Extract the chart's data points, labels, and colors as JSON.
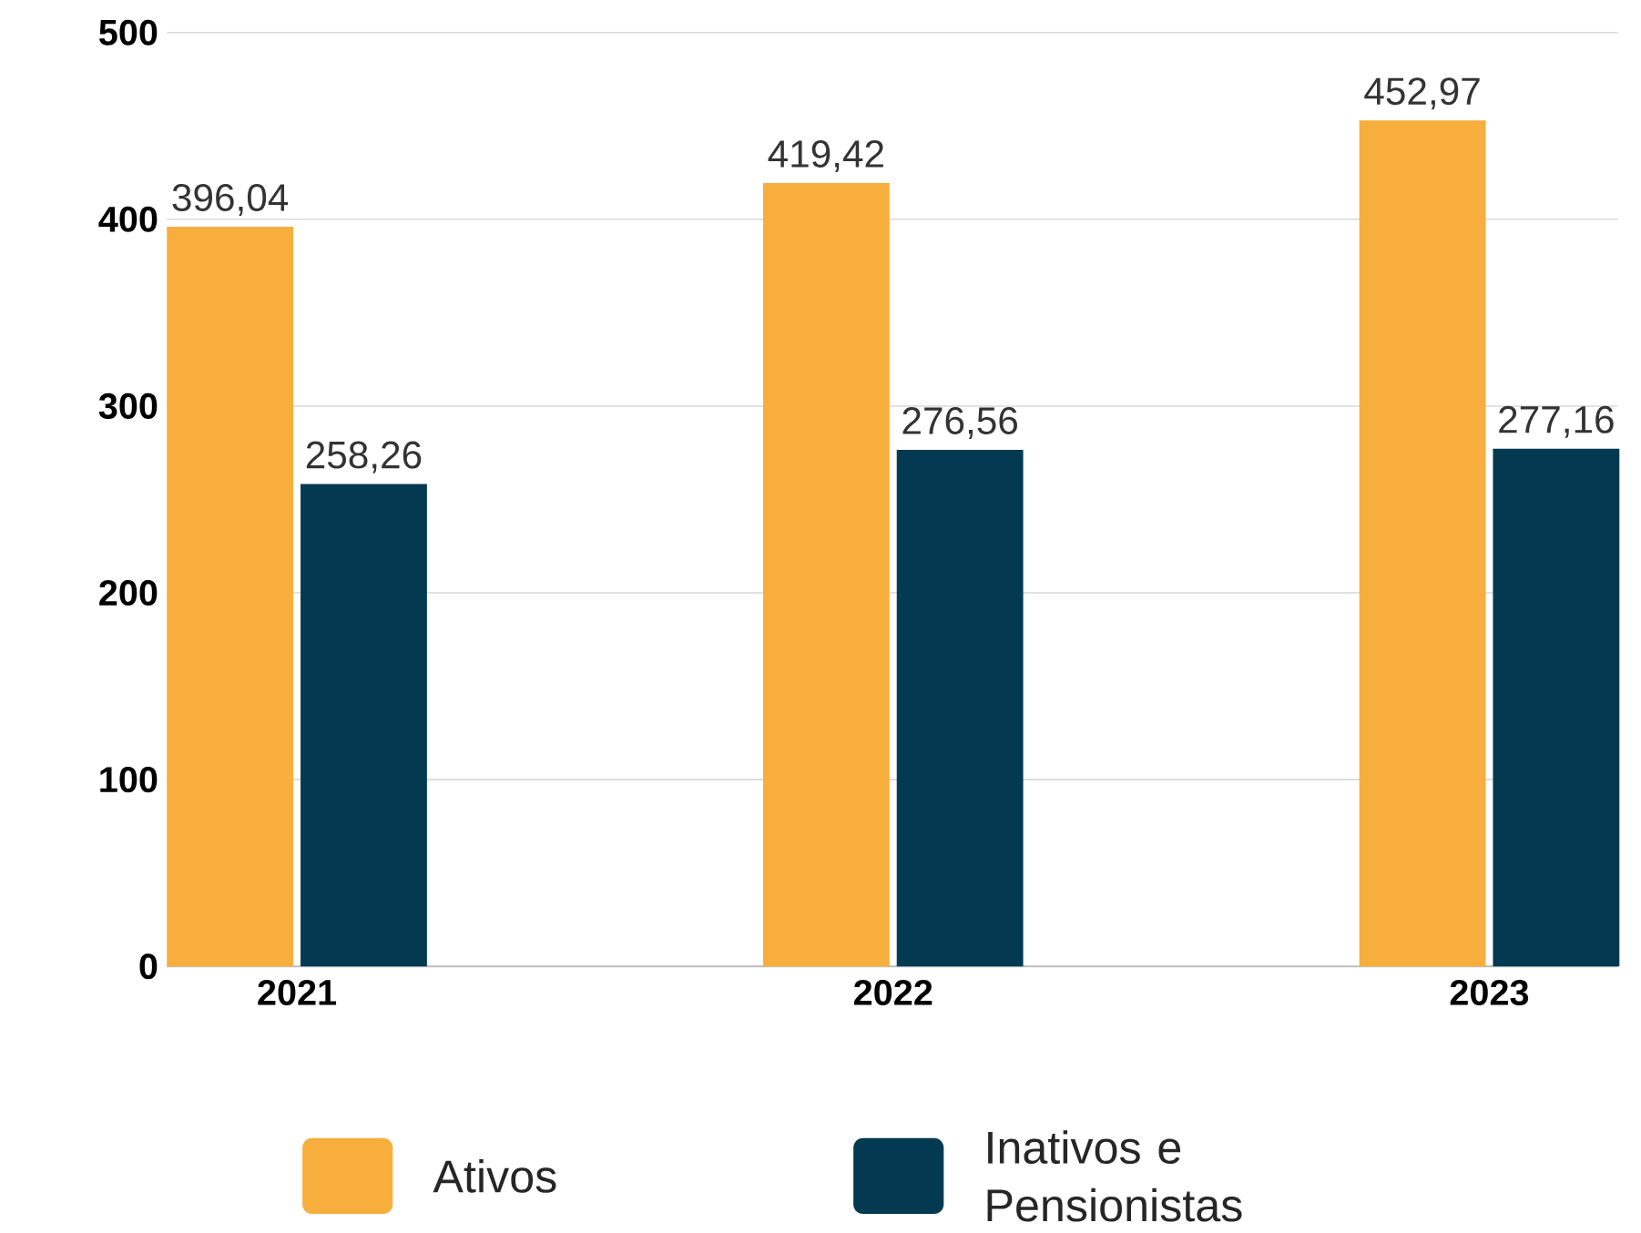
{
  "chart_data": {
    "type": "bar",
    "categories": [
      "2021",
      "2022",
      "2023"
    ],
    "series": [
      {
        "name": "Ativos",
        "color": "#f8ae3c",
        "values": [
          396.04,
          419.42,
          452.97
        ],
        "value_labels": [
          "396,04",
          "419,42",
          "452,97"
        ]
      },
      {
        "name": "Inativos e Pensionistas",
        "color": "#033a52",
        "values": [
          258.26,
          276.56,
          277.16
        ],
        "value_labels": [
          "258,26",
          "276,56",
          "277,16"
        ]
      }
    ],
    "ylim": [
      0,
      500
    ],
    "yticks": [
      0,
      100,
      200,
      300,
      400,
      500
    ],
    "grid": "y",
    "legend": "bottom"
  }
}
